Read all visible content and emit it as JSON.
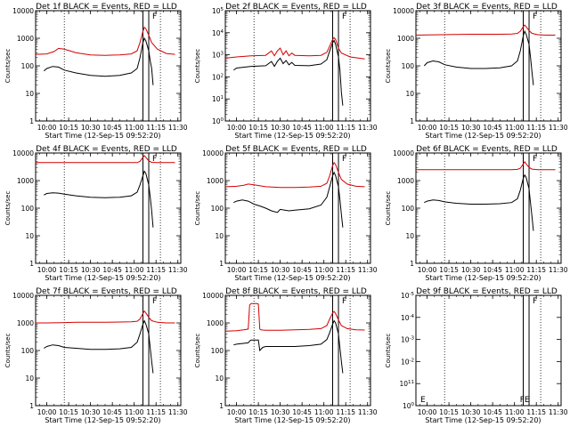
{
  "window": {
    "title": ""
  },
  "xaxis": {
    "label": "Start Time (12-Sep-15 09:52:20)",
    "ticks": [
      {
        "t": 0,
        "label": "10:00"
      },
      {
        "t": 15,
        "label": "10:15"
      },
      {
        "t": 30,
        "label": "10:30"
      },
      {
        "t": 45,
        "label": "10:45"
      },
      {
        "t": 60,
        "label": "11:00"
      },
      {
        "t": 75,
        "label": "11:15"
      },
      {
        "t": 90,
        "label": "11:30"
      }
    ],
    "range_minutes_after_10_00": [
      -7.7,
      92
    ],
    "dotted_lines": [
      12,
      78
    ],
    "solid_lines": [
      66,
      70
    ],
    "flare_label": "F"
  },
  "yaxis_label": "Counts/sec",
  "colors": {
    "events": "#000000",
    "lld": "#d40000"
  },
  "chart_data": [
    {
      "type": "line",
      "title": "Det 1f BLACK = Events, RED = LLD",
      "ylim": [
        1,
        10000
      ],
      "yscale": "log",
      "ytick_labels": [
        "1",
        "10",
        "100",
        "1000",
        "10000"
      ],
      "series": [
        {
          "name": "LLD",
          "x": [
            -7.7,
            0,
            5,
            8,
            12,
            20,
            30,
            40,
            50,
            58,
            62,
            64,
            66,
            67,
            68,
            70,
            72,
            76,
            82,
            88
          ],
          "y": [
            260,
            270,
            330,
            430,
            400,
            300,
            250,
            240,
            250,
            270,
            350,
            700,
            1800,
            2500,
            2200,
            1300,
            700,
            400,
            280,
            260
          ]
        },
        {
          "name": "Events",
          "x": [
            -2,
            0,
            4,
            8,
            12,
            20,
            30,
            40,
            50,
            58,
            62,
            64,
            66,
            67,
            68,
            70,
            71,
            72,
            73
          ],
          "y": [
            65,
            80,
            95,
            90,
            70,
            55,
            45,
            42,
            45,
            55,
            80,
            200,
            700,
            1000,
            800,
            350,
            150,
            80,
            20
          ]
        }
      ]
    },
    {
      "type": "line",
      "title": "Det 2f BLACK = Events, RED = LLD",
      "ylim": [
        1,
        100000
      ],
      "yscale": "log",
      "ytick_labels": [
        "10^0",
        "10^1",
        "10^2",
        "10^3",
        "10^4",
        "10^5"
      ],
      "series": [
        {
          "name": "LLD",
          "x": [
            -7.7,
            0,
            10,
            20,
            24,
            26,
            28,
            30,
            32,
            34,
            36,
            38,
            40,
            50,
            58,
            62,
            64,
            66,
            67,
            68,
            70,
            72,
            78,
            88
          ],
          "y": [
            700,
            800,
            900,
            950,
            1500,
            900,
            1500,
            2000,
            1000,
            1500,
            900,
            1200,
            950,
            900,
            950,
            1300,
            2500,
            5000,
            6000,
            5000,
            2000,
            1200,
            800,
            650
          ]
        },
        {
          "name": "Events",
          "x": [
            -2,
            0,
            10,
            20,
            24,
            26,
            28,
            30,
            32,
            34,
            36,
            38,
            40,
            50,
            58,
            62,
            64,
            66,
            67,
            68,
            70,
            71,
            72,
            73
          ],
          "y": [
            200,
            250,
            300,
            320,
            500,
            300,
            500,
            700,
            400,
            550,
            350,
            450,
            330,
            320,
            380,
            600,
            1500,
            3500,
            4500,
            3000,
            800,
            200,
            20,
            5
          ]
        }
      ]
    },
    {
      "type": "line",
      "title": "Det 3f BLACK = Events, RED = LLD",
      "ylim": [
        1,
        10000
      ],
      "yscale": "log",
      "ytick_labels": [
        "1",
        "10",
        "100",
        "1000",
        "10000"
      ],
      "series": [
        {
          "name": "LLD",
          "x": [
            -7.7,
            0,
            10,
            20,
            30,
            40,
            50,
            58,
            62,
            64,
            66,
            67,
            68,
            70,
            72,
            76,
            82,
            88
          ],
          "y": [
            1300,
            1320,
            1350,
            1380,
            1400,
            1400,
            1400,
            1420,
            1500,
            1800,
            2600,
            3000,
            2600,
            1900,
            1500,
            1350,
            1300,
            1300
          ]
        },
        {
          "name": "Events",
          "x": [
            -2,
            0,
            4,
            8,
            12,
            20,
            30,
            40,
            50,
            58,
            62,
            64,
            66,
            67,
            68,
            70,
            71,
            72,
            73
          ],
          "y": [
            100,
            130,
            150,
            140,
            110,
            90,
            80,
            80,
            85,
            100,
            150,
            350,
            1200,
            1800,
            1400,
            600,
            200,
            60,
            20
          ]
        }
      ]
    },
    {
      "type": "line",
      "title": "Det 4f BLACK = Events, RED = LLD",
      "ylim": [
        1,
        10000
      ],
      "yscale": "log",
      "ytick_labels": [
        "1",
        "10",
        "100",
        "1000",
        "10000"
      ],
      "series": [
        {
          "name": "LLD",
          "x": [
            -7.7,
            0,
            10,
            20,
            30,
            40,
            50,
            58,
            62,
            64,
            66,
            67,
            68,
            70,
            72,
            76,
            82,
            88
          ],
          "y": [
            4500,
            4500,
            4500,
            4500,
            4500,
            4500,
            4500,
            4500,
            4500,
            5000,
            7000,
            8000,
            7000,
            5200,
            4600,
            4500,
            4500,
            4500
          ]
        },
        {
          "name": "Events",
          "x": [
            -2,
            0,
            4,
            8,
            12,
            20,
            30,
            40,
            50,
            58,
            62,
            64,
            66,
            67,
            68,
            70,
            71,
            72,
            73
          ],
          "y": [
            300,
            340,
            360,
            350,
            320,
            280,
            250,
            240,
            250,
            280,
            380,
            700,
            1500,
            2200,
            1800,
            700,
            250,
            80,
            20
          ]
        }
      ]
    },
    {
      "type": "line",
      "title": "Det 5f BLACK = Events, RED = LLD",
      "ylim": [
        1,
        10000
      ],
      "yscale": "log",
      "ytick_labels": [
        "1",
        "10",
        "100",
        "1000",
        "10000"
      ],
      "series": [
        {
          "name": "LLD",
          "x": [
            -7.7,
            0,
            5,
            8,
            12,
            20,
            30,
            40,
            50,
            58,
            62,
            64,
            66,
            67,
            68,
            70,
            72,
            76,
            82,
            88
          ],
          "y": [
            600,
            620,
            680,
            750,
            700,
            600,
            560,
            560,
            580,
            620,
            800,
            1500,
            3500,
            4500,
            3800,
            2000,
            1100,
            750,
            620,
            600
          ]
        },
        {
          "name": "Events",
          "x": [
            -2,
            0,
            4,
            8,
            12,
            16,
            20,
            24,
            28,
            30,
            36,
            40,
            50,
            58,
            62,
            64,
            66,
            67,
            68,
            70,
            71,
            72,
            73
          ],
          "y": [
            160,
            180,
            200,
            180,
            140,
            120,
            100,
            80,
            70,
            90,
            80,
            85,
            95,
            130,
            250,
            600,
            1500,
            2000,
            1500,
            600,
            200,
            60,
            20
          ]
        }
      ]
    },
    {
      "type": "line",
      "title": "Det 6f BLACK = Events, RED = LLD",
      "ylim": [
        1,
        10000
      ],
      "yscale": "log",
      "ytick_labels": [
        "1",
        "10",
        "100",
        "1000",
        "10000"
      ],
      "series": [
        {
          "name": "LLD",
          "x": [
            -7.7,
            0,
            10,
            20,
            30,
            40,
            50,
            58,
            62,
            64,
            66,
            67,
            68,
            70,
            72,
            76,
            82,
            88
          ],
          "y": [
            2500,
            2500,
            2500,
            2500,
            2500,
            2500,
            2500,
            2500,
            2550,
            2800,
            4000,
            4800,
            4000,
            3000,
            2600,
            2500,
            2500,
            2500
          ]
        },
        {
          "name": "Events",
          "x": [
            -2,
            0,
            4,
            8,
            12,
            20,
            30,
            40,
            50,
            58,
            62,
            64,
            66,
            67,
            68,
            70,
            71,
            72,
            73
          ],
          "y": [
            160,
            180,
            200,
            190,
            170,
            150,
            140,
            140,
            145,
            160,
            220,
            450,
            1200,
            1600,
            1300,
            500,
            150,
            50,
            15
          ]
        }
      ]
    },
    {
      "type": "line",
      "title": "Det 7f BLACK = Events, RED = LLD",
      "ylim": [
        1,
        10000
      ],
      "yscale": "log",
      "ytick_labels": [
        "1",
        "10",
        "100",
        "1000",
        "10000"
      ],
      "series": [
        {
          "name": "LLD",
          "x": [
            -7.7,
            0,
            10,
            20,
            30,
            40,
            50,
            58,
            62,
            64,
            66,
            67,
            68,
            70,
            72,
            76,
            82,
            88
          ],
          "y": [
            1000,
            1000,
            1020,
            1050,
            1060,
            1060,
            1080,
            1100,
            1150,
            1400,
            2200,
            2700,
            2300,
            1600,
            1200,
            1050,
            1000,
            1000
          ]
        },
        {
          "name": "Events",
          "x": [
            -2,
            0,
            4,
            8,
            12,
            20,
            30,
            40,
            50,
            58,
            62,
            64,
            66,
            67,
            68,
            70,
            71,
            72,
            73
          ],
          "y": [
            120,
            140,
            160,
            150,
            130,
            120,
            110,
            110,
            115,
            130,
            200,
            400,
            900,
            1200,
            900,
            400,
            120,
            40,
            15
          ]
        }
      ]
    },
    {
      "type": "line",
      "title": "Det 8f BLACK = Events, RED = LLD",
      "ylim": [
        1,
        10000
      ],
      "yscale": "log",
      "ytick_labels": [
        "1",
        "10",
        "100",
        "1000",
        "10000"
      ],
      "series": [
        {
          "name": "LLD",
          "x": [
            -7.7,
            0,
            5,
            8,
            9,
            10,
            12,
            14,
            15,
            16,
            17,
            18,
            20,
            30,
            40,
            50,
            58,
            62,
            64,
            66,
            67,
            68,
            70,
            72,
            76,
            82,
            88
          ],
          "y": [
            500,
            520,
            560,
            600,
            4500,
            5000,
            5000,
            5000,
            4800,
            600,
            560,
            550,
            540,
            540,
            560,
            580,
            620,
            800,
            1400,
            2300,
            2600,
            2200,
            1300,
            800,
            620,
            560,
            550
          ]
        },
        {
          "name": "Events",
          "x": [
            -2,
            0,
            4,
            8,
            9,
            10,
            15,
            16,
            18,
            20,
            30,
            40,
            50,
            58,
            62,
            64,
            66,
            67,
            68,
            70,
            71,
            72,
            73
          ],
          "y": [
            160,
            170,
            180,
            190,
            220,
            240,
            240,
            100,
            130,
            140,
            140,
            140,
            150,
            170,
            250,
            450,
            900,
            1200,
            1000,
            400,
            120,
            40,
            15
          ]
        }
      ]
    },
    {
      "type": "line",
      "title": "Det 9f BLACK = Events, RED = LLD",
      "ylim": [
        1,
        100000000000
      ],
      "yscale": "log",
      "ytick_labels": [
        "10^0",
        "10^11",
        "10^-2",
        "10^-3",
        "10^-4",
        "10^-5"
      ],
      "series": [],
      "annotations": [
        "FE"
      ]
    }
  ]
}
